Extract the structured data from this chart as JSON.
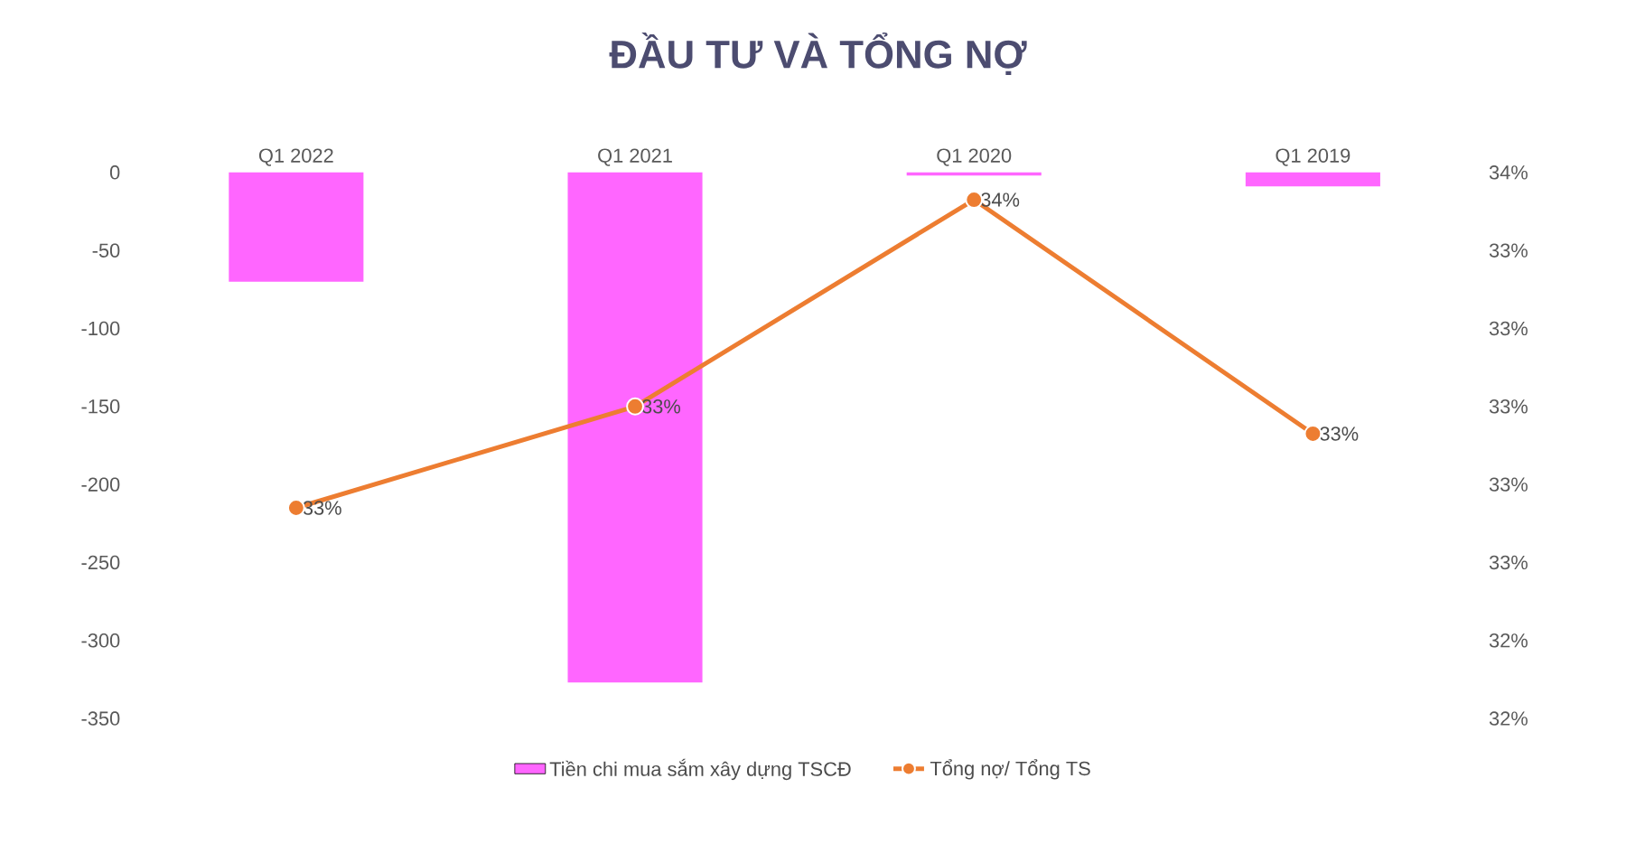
{
  "chart_data": {
    "type": "bar",
    "title": "ĐẦU TƯ VÀ TỔNG NỢ",
    "categories": [
      "Q1 2022",
      "Q1 2021",
      "Q1 2020",
      "Q1 2019"
    ],
    "series": [
      {
        "name": "Tiền chi mua sắm xây dựng TSCĐ",
        "color": "#ff66ff",
        "values": [
          -70,
          -327,
          -2,
          -9
        ]
      },
      {
        "name": "Tổng nợ/ Tổng TS",
        "type": "line",
        "axis": "y2",
        "color": "#ed7d31",
        "marker": "circle",
        "values": [
          32.74,
          33.0,
          33.53,
          32.93
        ],
        "value_labels": [
          "33%",
          "33%",
          "34%",
          "33%"
        ]
      }
    ],
    "ylim": [
      -350,
      0
    ],
    "yticks": [
      -350,
      -300,
      -250,
      -200,
      -150,
      -100,
      -50,
      0
    ],
    "y2lim": [
      32.2,
      33.6
    ],
    "y2ticks": [
      {
        "value": 32.2,
        "label": "32%"
      },
      {
        "value": 32.4,
        "label": "32%"
      },
      {
        "value": 32.6,
        "label": "33%"
      },
      {
        "value": 32.8,
        "label": "33%"
      },
      {
        "value": 33.0,
        "label": "33%"
      },
      {
        "value": 33.2,
        "label": "33%"
      },
      {
        "value": 33.4,
        "label": "33%"
      },
      {
        "value": 33.6,
        "label": "34%"
      }
    ],
    "legend": "bottom"
  }
}
